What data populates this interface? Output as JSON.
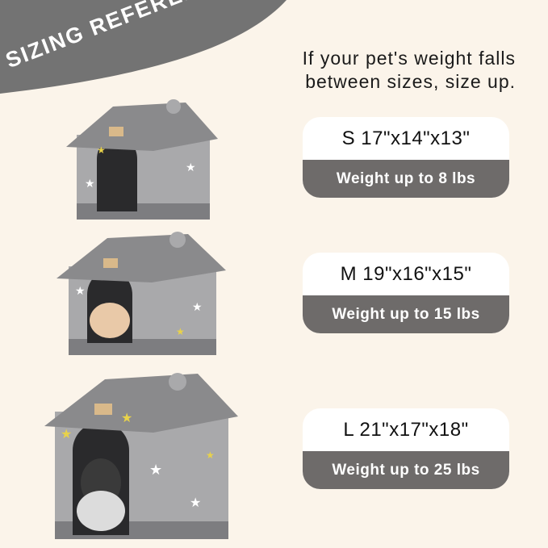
{
  "banner": {
    "title": "SIZING REFERENCE",
    "color": "#737373"
  },
  "tip": {
    "line1": "If your pet's weight falls",
    "line2": "between sizes, size up."
  },
  "sizes": [
    {
      "size": "S 17\"x14\"x13\"",
      "weight": "Weight up to 8 lbs"
    },
    {
      "size": "M 19\"x16\"x15\"",
      "weight": "Weight up to 15 lbs"
    },
    {
      "size": "L 21\"x17\"x18\"",
      "weight": "Weight up to 25 lbs"
    }
  ],
  "colors": {
    "background": "#fbf4ea",
    "card_bottom": "#6e6b6a",
    "house": "#a9a9ab",
    "roof": "#8a8a8c"
  },
  "houses": [
    {
      "icon": "pet-house-small-icon",
      "occupant": "empty"
    },
    {
      "icon": "pet-house-medium-icon",
      "occupant": "cat"
    },
    {
      "icon": "pet-house-large-icon",
      "occupant": "dog"
    }
  ]
}
